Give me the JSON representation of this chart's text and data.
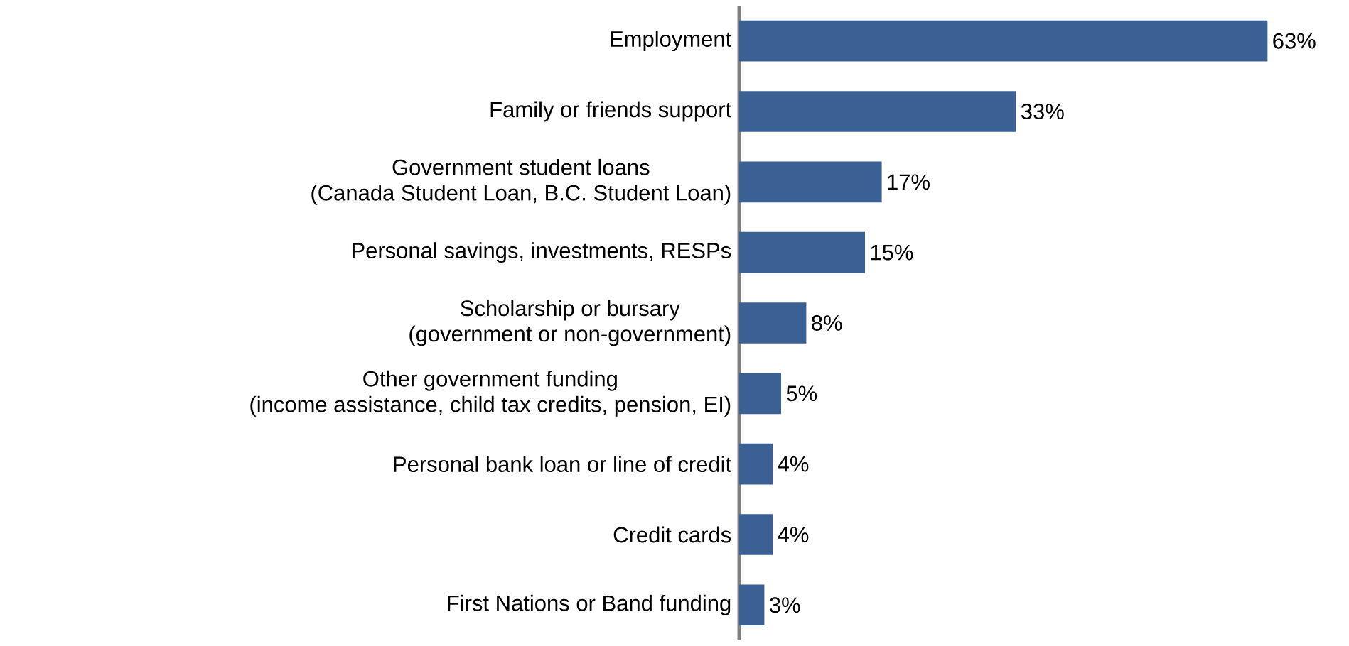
{
  "chart_data": {
    "type": "bar",
    "orientation": "horizontal",
    "categories": [
      "Employment",
      "Family or friends support",
      "Government student loans\n(Canada Student Loan, B.C. Student Loan)",
      "Personal savings, investments, RESPs",
      "Scholarship or bursary\n(government or non-government)",
      "Other government funding\n(income assistance, child tax credits, pension, EI)",
      "Personal bank loan or line of credit",
      "Credit cards",
      "First Nations or Band funding"
    ],
    "values": [
      63,
      33,
      17,
      15,
      8,
      5,
      4,
      4,
      3
    ],
    "value_labels": [
      "63%",
      "33%",
      "17%",
      "15%",
      "8%",
      "5%",
      "4%",
      "4%",
      "3%"
    ],
    "color": "#3a6094"
  }
}
